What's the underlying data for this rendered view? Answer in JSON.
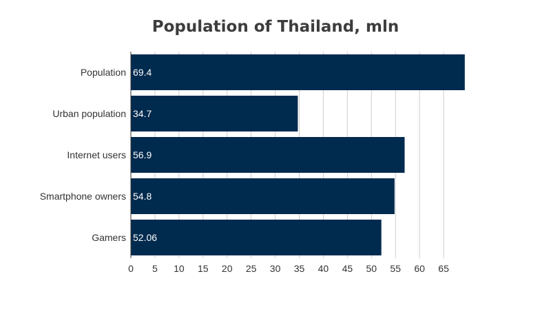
{
  "chart_data": {
    "type": "bar",
    "orientation": "horizontal",
    "title": "Population of Thailand, mln",
    "xlabel": "",
    "ylabel": "",
    "categories": [
      "Population",
      "Urban population",
      "Internet users",
      "Smartphone owners",
      "Gamers"
    ],
    "values": [
      69.4,
      34.7,
      56.9,
      54.8,
      52.06
    ],
    "data_labels": [
      "69.4",
      "34.7",
      "56.9",
      "54.8",
      "52.06"
    ],
    "xlim": [
      0,
      70
    ],
    "x_ticks": [
      0,
      5,
      10,
      15,
      20,
      25,
      30,
      35,
      40,
      45,
      50,
      55,
      60,
      65
    ],
    "grid": "vertical",
    "legend": "none",
    "colors": {
      "bar": "#002a4e",
      "grid": "#cccccc",
      "axis": "#333333"
    }
  }
}
